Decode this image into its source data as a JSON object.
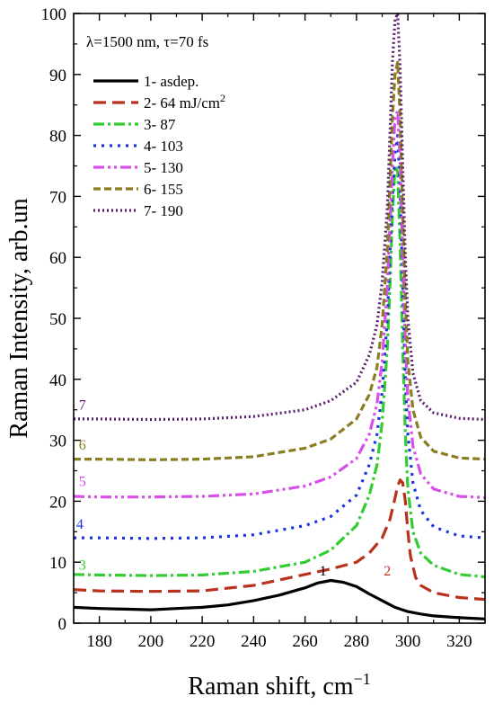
{
  "chart_data": {
    "type": "line",
    "annotation": "λ=1500 nm, τ=70 fs",
    "xlabel": "Raman shift, cm",
    "xlabel_sup": "−1",
    "ylabel": "Raman Intensity, arb.un",
    "xlim": [
      170,
      330
    ],
    "ylim": [
      0,
      100
    ],
    "x_ticks": [
      180,
      200,
      220,
      240,
      260,
      280,
      300,
      320
    ],
    "y_ticks": [
      0,
      10,
      20,
      30,
      40,
      50,
      60,
      70,
      80,
      90,
      100
    ],
    "legend_position": "top-left",
    "series": [
      {
        "name": "1- asdep.",
        "label_main": "1- asdep.",
        "label_sup": "",
        "curve_label": "1",
        "color": "#000000",
        "dash": "",
        "x": [
          170,
          180,
          190,
          200,
          210,
          220,
          230,
          240,
          250,
          260,
          265,
          270,
          275,
          280,
          285,
          290,
          295,
          300,
          305,
          310,
          320,
          330
        ],
        "y": [
          2.6,
          2.4,
          2.3,
          2.2,
          2.4,
          2.6,
          3.0,
          3.7,
          4.6,
          5.8,
          6.6,
          7.0,
          6.7,
          6.0,
          4.8,
          3.7,
          2.6,
          1.9,
          1.5,
          1.2,
          0.9,
          0.7
        ]
      },
      {
        "name": "2- 64 mJ/cm2",
        "label_main": "2- 64 mJ/cm",
        "label_sup": "2",
        "curve_label": "2",
        "color": "#b8321e",
        "dash": "14,7",
        "x": [
          170,
          180,
          200,
          220,
          240,
          260,
          270,
          280,
          285,
          290,
          293,
          295,
          296,
          297,
          298,
          299,
          300,
          301,
          303,
          305,
          310,
          320,
          330
        ],
        "y": [
          5.5,
          5.3,
          5.2,
          5.3,
          6.2,
          8.0,
          8.9,
          10.0,
          11.5,
          14.0,
          17.0,
          20.5,
          22.5,
          23.5,
          23.0,
          20.0,
          15.0,
          11.0,
          7.5,
          6.2,
          5.0,
          4.2,
          3.9
        ]
      },
      {
        "name": "3- 87",
        "label_main": "3- 87",
        "label_sup": "",
        "curve_label": "3",
        "color": "#33cc33",
        "dash": "12,4,3,4",
        "x": [
          170,
          180,
          200,
          220,
          240,
          260,
          270,
          280,
          285,
          288,
          290,
          292,
          293,
          294,
          295,
          296,
          297,
          298,
          299,
          300,
          302,
          305,
          310,
          320,
          330
        ],
        "y": [
          8.0,
          7.9,
          7.8,
          7.9,
          8.5,
          10.0,
          12.0,
          16.0,
          21.0,
          26.0,
          33.0,
          45.0,
          55.0,
          67.0,
          75.0,
          74.0,
          62.0,
          45.0,
          31.0,
          22.0,
          15.0,
          11.5,
          9.5,
          8.0,
          7.6
        ]
      },
      {
        "name": "4- 103",
        "label_main": "4- 103",
        "label_sup": "",
        "curve_label": "4",
        "color": "#1a33dd",
        "dash": "3,6",
        "x": [
          170,
          180,
          200,
          220,
          240,
          260,
          270,
          280,
          285,
          288,
          290,
          292,
          293,
          294,
          295,
          296,
          297,
          298,
          299,
          300,
          302,
          305,
          310,
          320,
          330
        ],
        "y": [
          14.0,
          14.0,
          13.9,
          14.0,
          14.5,
          16.0,
          17.5,
          21.0,
          26.0,
          31.0,
          38.0,
          50.0,
          60.0,
          70.0,
          77.0,
          80.0,
          71.0,
          55.0,
          40.0,
          31.0,
          23.0,
          18.5,
          15.8,
          14.3,
          14.0
        ]
      },
      {
        "name": "5- 130",
        "label_main": "5- 130",
        "label_sup": "",
        "curve_label": "5",
        "color": "#d64fe6",
        "dash": "12,4,3,4,3,4",
        "x": [
          170,
          180,
          200,
          220,
          240,
          260,
          270,
          280,
          285,
          288,
          290,
          292,
          293,
          294,
          295,
          296,
          297,
          298,
          299,
          300,
          302,
          305,
          310,
          320,
          330
        ],
        "y": [
          20.8,
          20.7,
          20.7,
          20.8,
          21.2,
          22.5,
          24.0,
          27.0,
          31.0,
          36.0,
          43.0,
          55.0,
          65.0,
          75.0,
          83.0,
          84.0,
          76.0,
          60.0,
          46.0,
          37.0,
          29.0,
          24.5,
          22.0,
          20.8,
          20.6
        ]
      },
      {
        "name": "6- 155",
        "label_main": "6- 155",
        "label_sup": "",
        "curve_label": "6",
        "color": "#8a7d22",
        "dash": "8,4",
        "x": [
          170,
          180,
          200,
          220,
          240,
          260,
          270,
          280,
          285,
          288,
          290,
          292,
          293,
          294,
          295,
          296,
          297,
          298,
          299,
          300,
          302,
          305,
          310,
          320,
          330
        ],
        "y": [
          26.9,
          26.9,
          26.8,
          26.9,
          27.3,
          28.7,
          30.2,
          33.5,
          37.5,
          42.0,
          49.0,
          61.0,
          72.0,
          83.0,
          90.0,
          92.0,
          83.0,
          67.0,
          53.0,
          43.0,
          35.0,
          30.5,
          28.2,
          27.1,
          26.9
        ]
      },
      {
        "name": "7- 190",
        "label_main": "7- 190",
        "label_sup": "",
        "curve_label": "7",
        "color": "#5a1f6e",
        "dash": "2,3",
        "x": [
          170,
          180,
          200,
          220,
          240,
          260,
          270,
          280,
          285,
          288,
          290,
          292,
          293,
          294,
          295,
          296,
          297,
          298,
          299,
          300,
          302,
          305,
          310,
          320,
          330
        ],
        "y": [
          33.5,
          33.5,
          33.4,
          33.5,
          33.9,
          35.0,
          36.5,
          39.5,
          44.0,
          49.0,
          56.0,
          68.0,
          80.0,
          92.0,
          99.0,
          100.0,
          91.0,
          75.0,
          60.0,
          50.0,
          41.0,
          36.5,
          34.5,
          33.6,
          33.4
        ]
      }
    ]
  }
}
